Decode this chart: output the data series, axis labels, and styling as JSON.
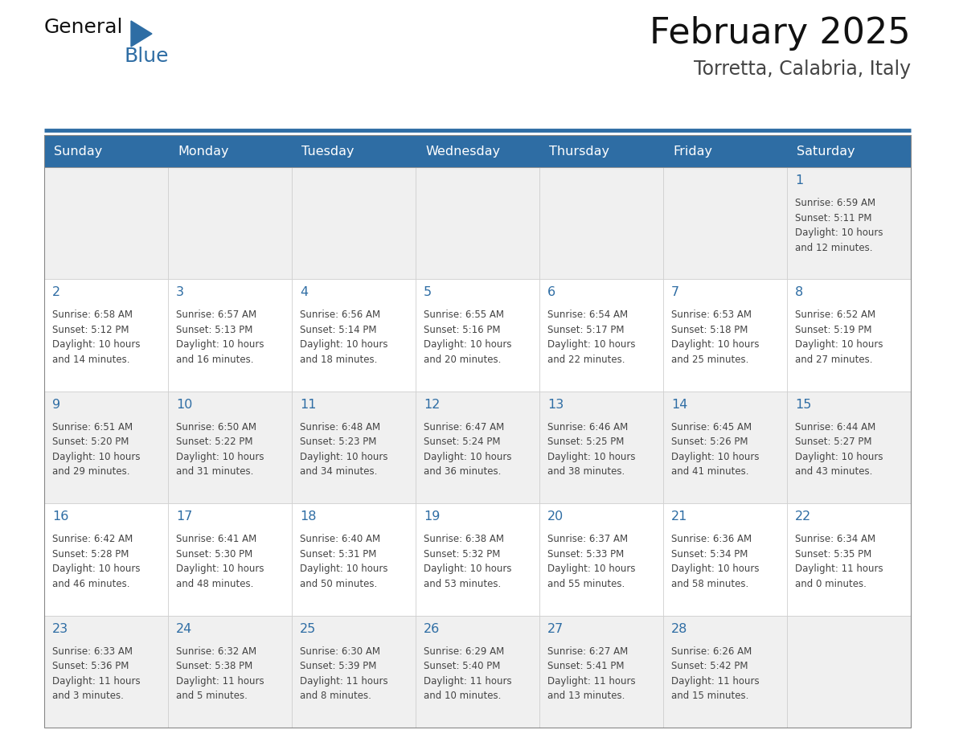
{
  "title": "February 2025",
  "subtitle": "Torretta, Calabria, Italy",
  "days_of_week": [
    "Sunday",
    "Monday",
    "Tuesday",
    "Wednesday",
    "Thursday",
    "Friday",
    "Saturday"
  ],
  "header_bg": "#2E6DA4",
  "header_text": "#FFFFFF",
  "cell_bg_light": "#F0F0F0",
  "cell_bg_white": "#FFFFFF",
  "cell_border": "#CCCCCC",
  "day_num_color": "#2E6DA4",
  "info_color": "#444444",
  "title_color": "#111111",
  "subtitle_color": "#444444",
  "logo_general_color": "#111111",
  "logo_blue_color": "#2E6DA4",
  "calendar": [
    [
      null,
      null,
      null,
      null,
      null,
      null,
      {
        "day": 1,
        "sunrise": "6:59 AM",
        "sunset": "5:11 PM",
        "daylight": "10 hours\nand 12 minutes."
      }
    ],
    [
      {
        "day": 2,
        "sunrise": "6:58 AM",
        "sunset": "5:12 PM",
        "daylight": "10 hours\nand 14 minutes."
      },
      {
        "day": 3,
        "sunrise": "6:57 AM",
        "sunset": "5:13 PM",
        "daylight": "10 hours\nand 16 minutes."
      },
      {
        "day": 4,
        "sunrise": "6:56 AM",
        "sunset": "5:14 PM",
        "daylight": "10 hours\nand 18 minutes."
      },
      {
        "day": 5,
        "sunrise": "6:55 AM",
        "sunset": "5:16 PM",
        "daylight": "10 hours\nand 20 minutes."
      },
      {
        "day": 6,
        "sunrise": "6:54 AM",
        "sunset": "5:17 PM",
        "daylight": "10 hours\nand 22 minutes."
      },
      {
        "day": 7,
        "sunrise": "6:53 AM",
        "sunset": "5:18 PM",
        "daylight": "10 hours\nand 25 minutes."
      },
      {
        "day": 8,
        "sunrise": "6:52 AM",
        "sunset": "5:19 PM",
        "daylight": "10 hours\nand 27 minutes."
      }
    ],
    [
      {
        "day": 9,
        "sunrise": "6:51 AM",
        "sunset": "5:20 PM",
        "daylight": "10 hours\nand 29 minutes."
      },
      {
        "day": 10,
        "sunrise": "6:50 AM",
        "sunset": "5:22 PM",
        "daylight": "10 hours\nand 31 minutes."
      },
      {
        "day": 11,
        "sunrise": "6:48 AM",
        "sunset": "5:23 PM",
        "daylight": "10 hours\nand 34 minutes."
      },
      {
        "day": 12,
        "sunrise": "6:47 AM",
        "sunset": "5:24 PM",
        "daylight": "10 hours\nand 36 minutes."
      },
      {
        "day": 13,
        "sunrise": "6:46 AM",
        "sunset": "5:25 PM",
        "daylight": "10 hours\nand 38 minutes."
      },
      {
        "day": 14,
        "sunrise": "6:45 AM",
        "sunset": "5:26 PM",
        "daylight": "10 hours\nand 41 minutes."
      },
      {
        "day": 15,
        "sunrise": "6:44 AM",
        "sunset": "5:27 PM",
        "daylight": "10 hours\nand 43 minutes."
      }
    ],
    [
      {
        "day": 16,
        "sunrise": "6:42 AM",
        "sunset": "5:28 PM",
        "daylight": "10 hours\nand 46 minutes."
      },
      {
        "day": 17,
        "sunrise": "6:41 AM",
        "sunset": "5:30 PM",
        "daylight": "10 hours\nand 48 minutes."
      },
      {
        "day": 18,
        "sunrise": "6:40 AM",
        "sunset": "5:31 PM",
        "daylight": "10 hours\nand 50 minutes."
      },
      {
        "day": 19,
        "sunrise": "6:38 AM",
        "sunset": "5:32 PM",
        "daylight": "10 hours\nand 53 minutes."
      },
      {
        "day": 20,
        "sunrise": "6:37 AM",
        "sunset": "5:33 PM",
        "daylight": "10 hours\nand 55 minutes."
      },
      {
        "day": 21,
        "sunrise": "6:36 AM",
        "sunset": "5:34 PM",
        "daylight": "10 hours\nand 58 minutes."
      },
      {
        "day": 22,
        "sunrise": "6:34 AM",
        "sunset": "5:35 PM",
        "daylight": "11 hours\nand 0 minutes."
      }
    ],
    [
      {
        "day": 23,
        "sunrise": "6:33 AM",
        "sunset": "5:36 PM",
        "daylight": "11 hours\nand 3 minutes."
      },
      {
        "day": 24,
        "sunrise": "6:32 AM",
        "sunset": "5:38 PM",
        "daylight": "11 hours\nand 5 minutes."
      },
      {
        "day": 25,
        "sunrise": "6:30 AM",
        "sunset": "5:39 PM",
        "daylight": "11 hours\nand 8 minutes."
      },
      {
        "day": 26,
        "sunrise": "6:29 AM",
        "sunset": "5:40 PM",
        "daylight": "11 hours\nand 10 minutes."
      },
      {
        "day": 27,
        "sunrise": "6:27 AM",
        "sunset": "5:41 PM",
        "daylight": "11 hours\nand 13 minutes."
      },
      {
        "day": 28,
        "sunrise": "6:26 AM",
        "sunset": "5:42 PM",
        "daylight": "11 hours\nand 15 minutes."
      },
      null
    ]
  ]
}
